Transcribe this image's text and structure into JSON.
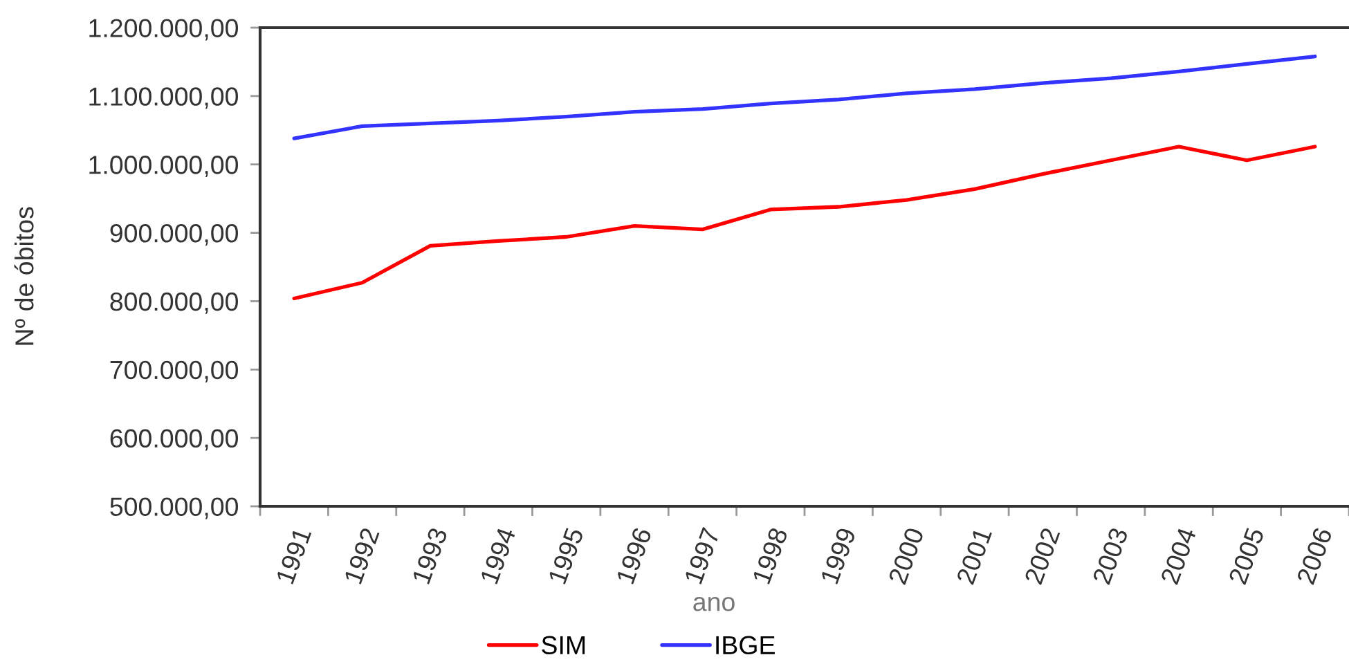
{
  "chart_data": {
    "type": "line",
    "xlabel": "ano",
    "ylabel": "Nº de óbitos",
    "categories": [
      "1991",
      "1992",
      "1993",
      "1994",
      "1995",
      "1996",
      "1997",
      "1998",
      "1999",
      "2000",
      "2001",
      "2002",
      "2003",
      "2004",
      "2005",
      "2006"
    ],
    "series": [
      {
        "name": "SIM",
        "color": "#ff0000",
        "values": [
          804000,
          827000,
          881000,
          888000,
          894000,
          910000,
          905000,
          934000,
          938000,
          948000,
          964000,
          986000,
          1006000,
          1026000,
          1006000,
          1026000
        ]
      },
      {
        "name": "IBGE",
        "color": "#3333ff",
        "values": [
          1038000,
          1056000,
          1060000,
          1064000,
          1070000,
          1077000,
          1081000,
          1089000,
          1095000,
          1104000,
          1110000,
          1119000,
          1126000,
          1136000,
          1147000,
          1158000
        ]
      }
    ],
    "ylim": [
      500000,
      1200000
    ],
    "yticks": [
      {
        "value": 500000,
        "label": "500.000,00"
      },
      {
        "value": 600000,
        "label": "600.000,00"
      },
      {
        "value": 700000,
        "label": "700.000,00"
      },
      {
        "value": 800000,
        "label": "800.000,00"
      },
      {
        "value": 900000,
        "label": "900.000,00"
      },
      {
        "value": 1000000,
        "label": "1.000.000,00"
      },
      {
        "value": 1100000,
        "label": "1.100.000,00"
      },
      {
        "value": 1200000,
        "label": "1.200.000,00"
      }
    ],
    "legend": "bottom"
  }
}
